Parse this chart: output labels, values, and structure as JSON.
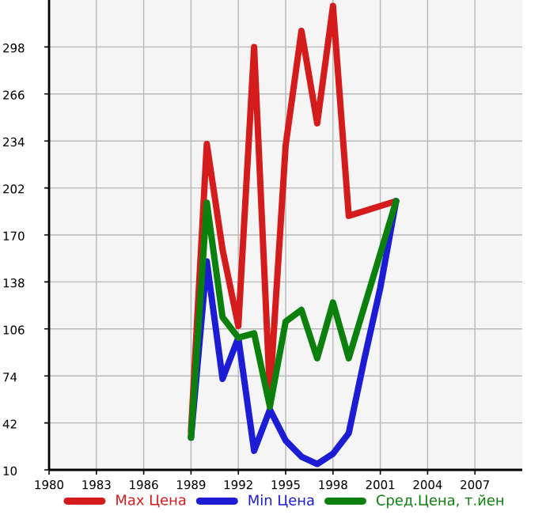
{
  "chart_data": {
    "type": "line",
    "xlim": [
      1980,
      2010
    ],
    "ylim": [
      10,
      330
    ],
    "xticks": [
      1980,
      1983,
      1986,
      1989,
      1992,
      1995,
      1998,
      2001,
      2004,
      2007
    ],
    "yticks": [
      10,
      42,
      74,
      106,
      138,
      170,
      202,
      234,
      266,
      298
    ],
    "grid": true,
    "legend": "bottom",
    "marker": "none",
    "line_style": "solid",
    "series": [
      {
        "name": "Max Цена",
        "color": "#d41c1c",
        "x": [
          1989,
          1990,
          1991,
          1992,
          1993,
          1994,
          1995,
          1996,
          1997,
          1998,
          1999,
          2002
        ],
        "values": [
          36,
          232,
          160,
          108,
          298,
          62,
          231,
          309,
          246,
          326,
          183,
          193
        ]
      },
      {
        "name": "Min Цена",
        "color": "#1c1cd4",
        "x": [
          1989,
          1990,
          1991,
          1992,
          1993,
          1994,
          1995,
          1996,
          1997,
          1998,
          1999,
          2000,
          2001,
          2002
        ],
        "values": [
          32,
          152,
          72,
          100,
          23,
          51,
          30,
          19,
          14,
          21,
          35,
          86,
          134,
          193
        ]
      },
      {
        "name": "Сред.Цена, т.йен",
        "color": "#0c800c",
        "x": [
          1989,
          1990,
          1991,
          1992,
          1993,
          1994,
          1995,
          1996,
          1997,
          1998,
          1999,
          2002
        ],
        "values": [
          32,
          192,
          114,
          100,
          103,
          53,
          111,
          119,
          86,
          124,
          86,
          193
        ]
      }
    ]
  }
}
